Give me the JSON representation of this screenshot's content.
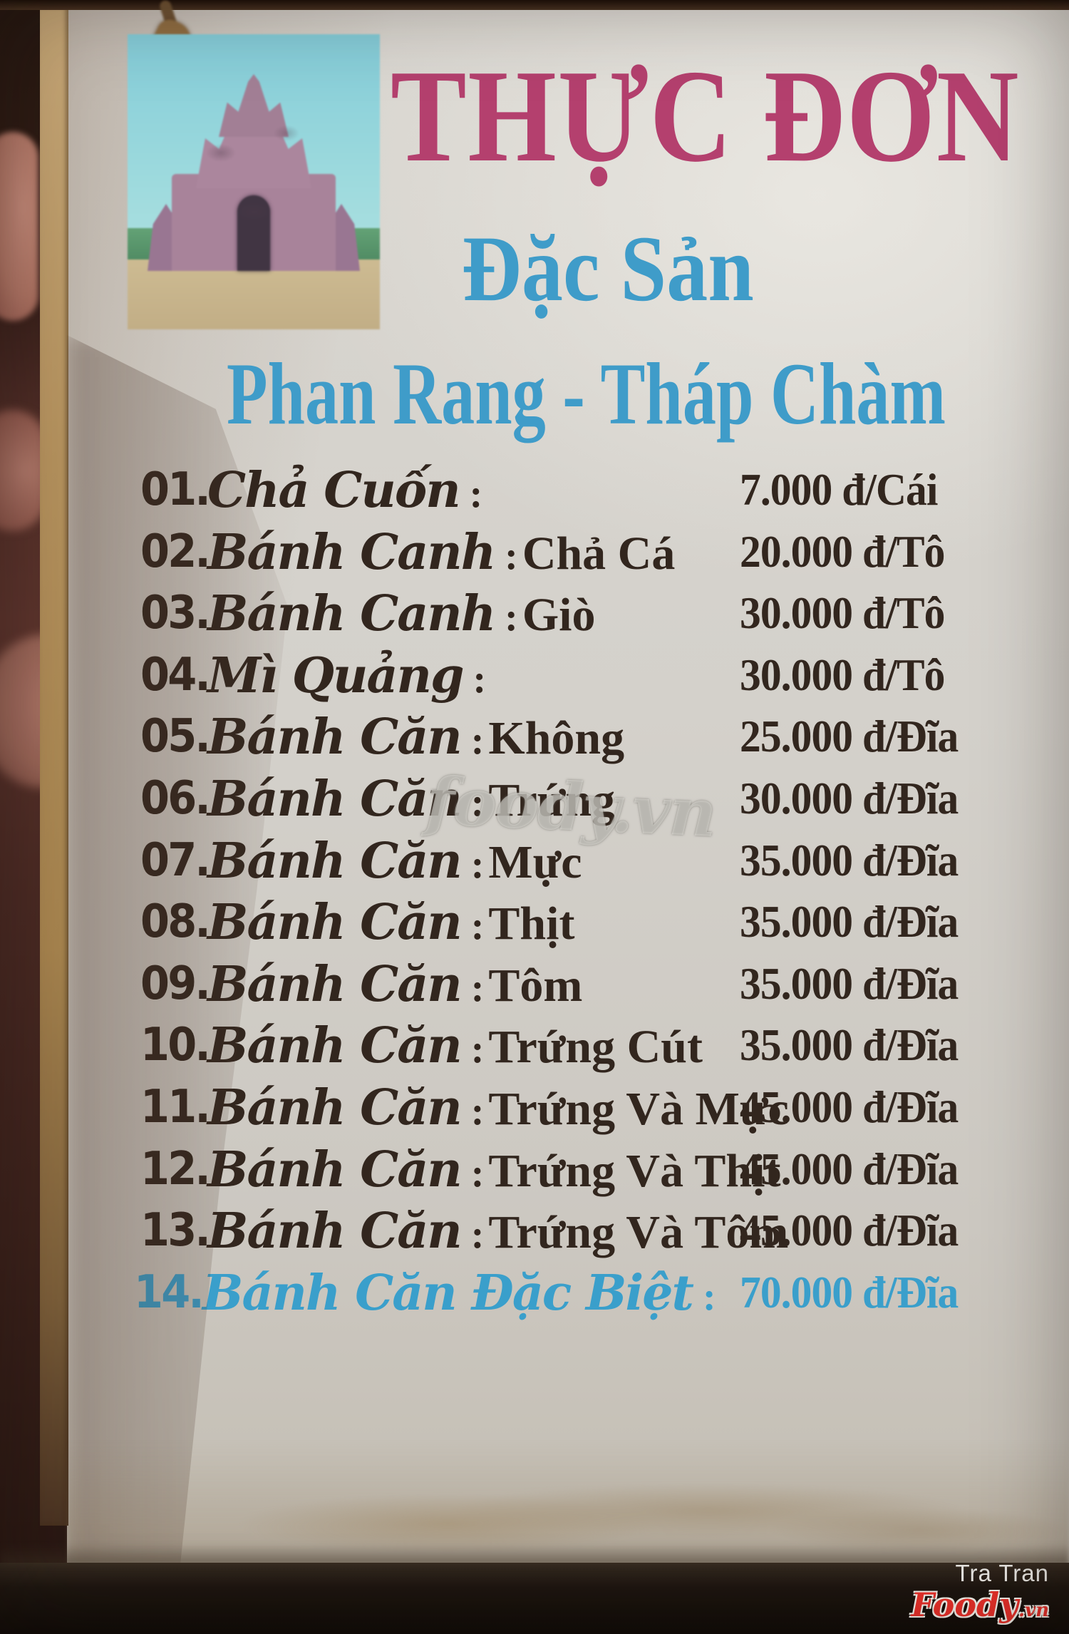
{
  "header": {
    "title": "THỰC ĐƠN",
    "subtitle": "Đặc Sản",
    "region": "Phan Rang - Tháp Chàm"
  },
  "menu": {
    "items": [
      {
        "num": "01.",
        "name": "Chả Cuốn",
        "sep": ":",
        "qual": "",
        "price": "7.000 đ/Cái",
        "special": false
      },
      {
        "num": "02.",
        "name": "Bánh Canh",
        "sep": ":",
        "qual": "Chả Cá",
        "price": "20.000 đ/Tô",
        "special": false
      },
      {
        "num": "03.",
        "name": "Bánh Canh",
        "sep": ":",
        "qual": "Giò",
        "price": "30.000 đ/Tô",
        "special": false
      },
      {
        "num": "04.",
        "name": "Mì Quảng",
        "sep": ":",
        "qual": "",
        "price": "30.000 đ/Tô",
        "special": false
      },
      {
        "num": "05.",
        "name": "Bánh Căn",
        "sep": ":",
        "qual": "Không",
        "price": "25.000 đ/Đĩa",
        "special": false
      },
      {
        "num": "06.",
        "name": "Bánh Căn",
        "sep": ":",
        "qual": "Trứng",
        "price": "30.000 đ/Đĩa",
        "special": false
      },
      {
        "num": "07.",
        "name": "Bánh Căn",
        "sep": ":",
        "qual": "Mực",
        "price": "35.000 đ/Đĩa",
        "special": false
      },
      {
        "num": "08.",
        "name": "Bánh Căn",
        "sep": ":",
        "qual": "Thịt",
        "price": "35.000 đ/Đĩa",
        "special": false
      },
      {
        "num": "09.",
        "name": "Bánh Căn",
        "sep": ":",
        "qual": "Tôm",
        "price": "35.000 đ/Đĩa",
        "special": false
      },
      {
        "num": "10.",
        "name": "Bánh Căn",
        "sep": ":",
        "qual": "Trứng Cút",
        "price": "35.000 đ/Đĩa",
        "special": false
      },
      {
        "num": "11.",
        "name": "Bánh Căn",
        "sep": ":",
        "qual": "Trứng Và Mực",
        "price": "45.000 đ/Đĩa",
        "special": false
      },
      {
        "num": "12.",
        "name": "Bánh Căn",
        "sep": ":",
        "qual": "Trứng Và Thịt",
        "price": "45.000 đ/Đĩa",
        "special": false
      },
      {
        "num": "13.",
        "name": "Bánh Căn",
        "sep": ":",
        "qual": "Trứng Và Tôm",
        "price": "45.000 đ/Đĩa",
        "special": false
      },
      {
        "num": "14.",
        "name": "Bánh Căn Đặc Biệt",
        "sep": ":",
        "qual": "",
        "price": "70.000 đ/Đĩa",
        "special": true
      }
    ]
  },
  "watermark": "foody.vn",
  "credit": {
    "author": "Tra Tran",
    "brand": "Foody",
    "brand_suffix": ".vn"
  },
  "colors": {
    "title_pink": "#b4406e",
    "heading_blue": "#3f9cc9",
    "special_blue": "#3a9fcb",
    "ink": "#32261e",
    "card_bg": "#d2cfc9",
    "foody_red": "#e8302a",
    "frame_tan": "#b6935e"
  }
}
